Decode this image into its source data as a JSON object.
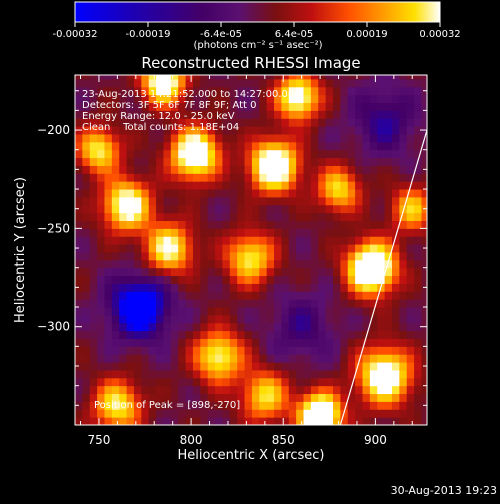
{
  "colorbar": {
    "tick_labels": [
      "-0.00032",
      "-0.00019",
      "-6.4e-05",
      "6.4e-05",
      "0.00019",
      "0.00032"
    ],
    "unit_label": "(photons cm⁻² s⁻¹ asec⁻²)"
  },
  "footer": {
    "timestamp": "30-Aug-2013 19:23"
  },
  "chart_data": {
    "type": "heatmap",
    "title": "Reconstructed RHESSI Image",
    "xlabel": "Heliocentric X (arcsec)",
    "ylabel": "Heliocentric Y (arcsec)",
    "xlim": [
      737,
      928
    ],
    "ylim": [
      -350,
      -172
    ],
    "xticks": [
      750,
      800,
      850,
      900
    ],
    "yticks": [
      -200,
      -250,
      -300
    ],
    "colormap": [
      "#0000ff",
      "#2200aa",
      "#440066",
      "#5a1070",
      "#7a1010",
      "#c01010",
      "#ff5000",
      "#ffa000",
      "#ffe000",
      "#ffffff"
    ],
    "annotations": [
      "23-Aug-2013 14:21:52.000 to 14:27:00.000",
      "Detectors: 3F 5F 6F 7F 8F 9F; Att 0",
      "Energy Range: 12.0 - 25.0 keV",
      "Clean    Total counts: 1.18E+04"
    ],
    "peak_label": "Position of Peak = [898,-270]",
    "peak": [
      898,
      -270
    ],
    "limb_line": [
      [
        881,
        -350
      ],
      [
        928,
        -200
      ]
    ],
    "blobs": [
      {
        "x": 898,
        "y": -270,
        "amp": 0.95,
        "sigma": 9
      },
      {
        "x": 870,
        "y": -345,
        "amp": 0.9,
        "sigma": 8
      },
      {
        "x": 905,
        "y": -325,
        "amp": 0.75,
        "sigma": 10
      },
      {
        "x": 845,
        "y": -218,
        "amp": 0.85,
        "sigma": 9
      },
      {
        "x": 802,
        "y": -212,
        "amp": 0.8,
        "sigma": 9
      },
      {
        "x": 785,
        "y": -175,
        "amp": 0.75,
        "sigma": 8
      },
      {
        "x": 858,
        "y": -183,
        "amp": 0.7,
        "sigma": 8
      },
      {
        "x": 765,
        "y": -238,
        "amp": 0.7,
        "sigma": 9
      },
      {
        "x": 788,
        "y": -260,
        "amp": 0.6,
        "sigma": 9
      },
      {
        "x": 832,
        "y": -265,
        "amp": 0.55,
        "sigma": 9
      },
      {
        "x": 815,
        "y": -315,
        "amp": 0.6,
        "sigma": 9
      },
      {
        "x": 840,
        "y": -335,
        "amp": 0.5,
        "sigma": 9
      },
      {
        "x": 760,
        "y": -340,
        "amp": 0.55,
        "sigma": 9
      },
      {
        "x": 750,
        "y": -210,
        "amp": 0.55,
        "sigma": 8
      },
      {
        "x": 880,
        "y": -230,
        "amp": 0.5,
        "sigma": 8
      },
      {
        "x": 920,
        "y": -240,
        "amp": 0.45,
        "sigma": 8
      },
      {
        "x": 772,
        "y": -290,
        "amp": -0.55,
        "sigma": 11
      },
      {
        "x": 905,
        "y": -195,
        "amp": -0.25,
        "sigma": 12
      },
      {
        "x": 860,
        "y": -300,
        "amp": -0.2,
        "sigma": 12
      }
    ]
  }
}
